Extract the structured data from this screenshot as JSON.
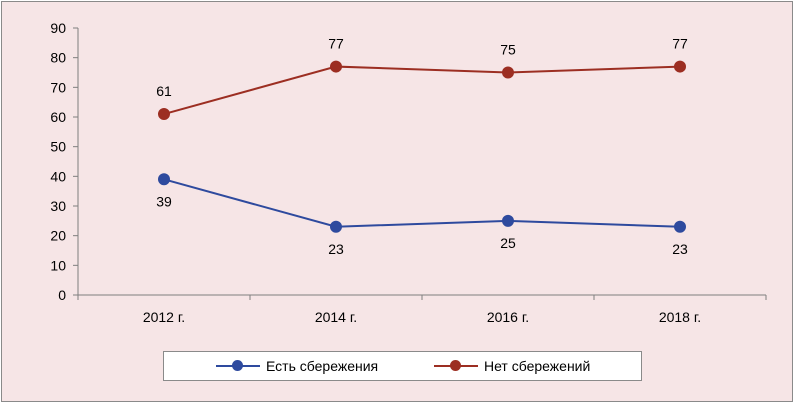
{
  "chart_data": {
    "type": "line",
    "categories": [
      "2012 г.",
      "2014 г.",
      "2016 г.",
      "2018 г."
    ],
    "series": [
      {
        "name": "Есть сбережения",
        "values": [
          39,
          23,
          25,
          23
        ],
        "color": "#2e4a9e",
        "label_position": "below"
      },
      {
        "name": "Нет сбережений",
        "values": [
          61,
          77,
          75,
          77
        ],
        "color": "#9c2e22",
        "label_position": "above"
      }
    ],
    "ylim": [
      0,
      90
    ],
    "yticks": [
      0,
      10,
      20,
      30,
      40,
      50,
      60,
      70,
      80,
      90
    ],
    "grid": false,
    "legend": "bottom"
  }
}
